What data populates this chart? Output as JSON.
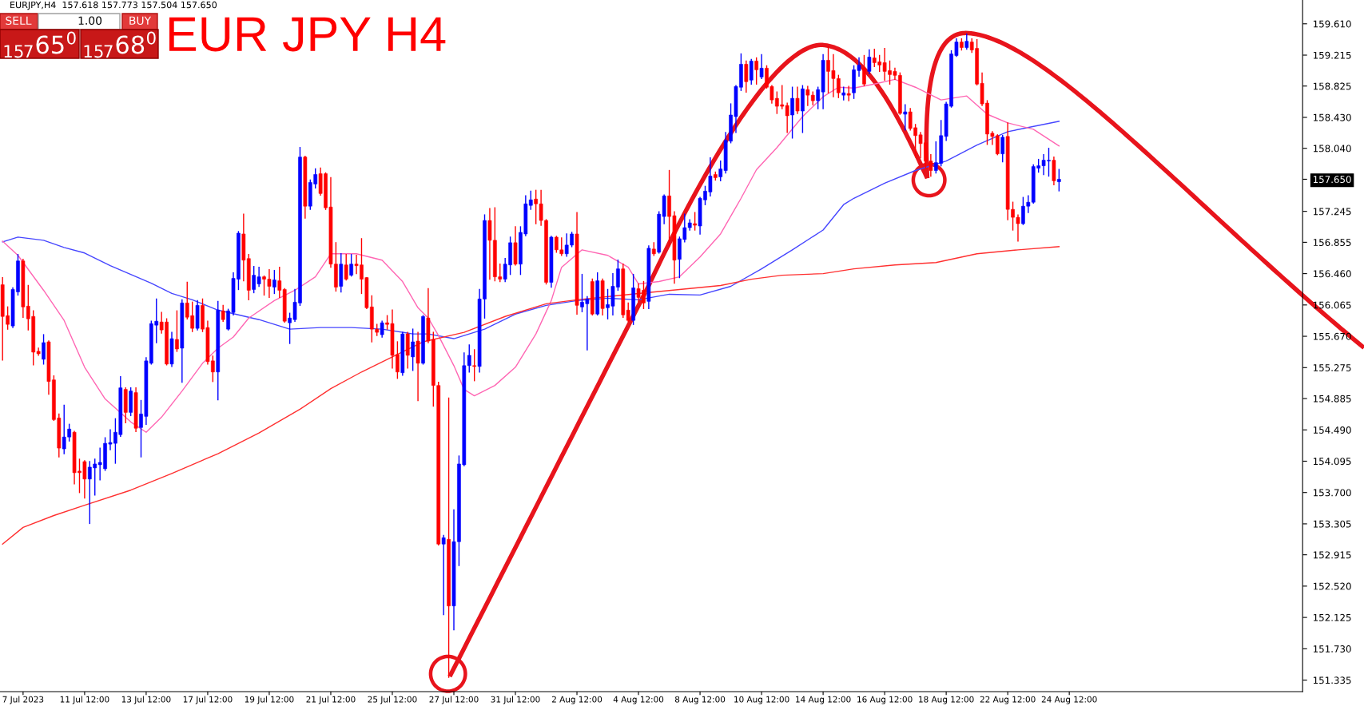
{
  "chart_data": {
    "type": "candlestick",
    "title": "EUR JPY H4",
    "subtitle": "EURJPY,H4  157.618 157.773 157.504 157.650",
    "annotations": [
      "SELL",
      "1.00",
      "BUY",
      "$_{157}$65$^{0}$",
      "$_{157}$68$^{0}$"
    ],
    "categories": [
      null,
      null,
      null,
      null,
      "7 Jul 2023",
      null,
      null,
      null,
      null,
      null,
      null,
      null,
      null,
      null,
      null,
      null,
      "11 Jul 12:00",
      null,
      null,
      null,
      null,
      null,
      null,
      null,
      null,
      null,
      null,
      null,
      "13 Jul 12:00",
      null,
      null,
      null,
      null,
      null,
      null,
      null,
      null,
      null,
      null,
      null,
      "17 Jul 12:00",
      null,
      null,
      null,
      null,
      null,
      null,
      null,
      null,
      null,
      null,
      null,
      "19 Jul 12:00",
      null,
      null,
      null,
      null,
      null,
      null,
      null,
      null,
      null,
      null,
      null,
      "21 Jul 12:00",
      null,
      null,
      null,
      null,
      null,
      null,
      null,
      null,
      null,
      null,
      null,
      "25 Jul 12:00",
      null,
      null,
      null,
      null,
      null,
      null,
      null,
      null,
      null,
      null,
      null,
      "27 Jul 12:00",
      null,
      null,
      null,
      null,
      null,
      null,
      null,
      null,
      null,
      null,
      null,
      "31 Jul 12:00",
      null,
      null,
      null,
      null,
      null,
      null,
      null,
      null,
      null,
      null,
      null,
      "2 Aug 12:00",
      null,
      null,
      null,
      null,
      null,
      null,
      null,
      null,
      null,
      null,
      null,
      "4 Aug 12:00",
      null,
      null,
      null,
      null,
      null,
      null,
      null,
      null,
      null,
      null,
      null,
      "8 Aug 12:00",
      null,
      null,
      null,
      null,
      null,
      null,
      null,
      null,
      null,
      null,
      null,
      "10 Aug 12:00",
      null,
      null,
      null,
      null,
      null,
      null,
      null,
      null,
      null,
      null,
      null,
      "14 Aug 12:00",
      null,
      null,
      null,
      null,
      null,
      null,
      null,
      null,
      null,
      null,
      null,
      "16 Aug 12:00",
      null,
      null,
      null,
      null,
      null,
      null,
      null,
      null,
      null,
      null,
      null,
      "18 Aug 12:00",
      null,
      null,
      null,
      null,
      null,
      null,
      null,
      null,
      null,
      null,
      null,
      "22 Aug 12:00",
      null,
      null,
      null,
      null,
      null,
      null,
      null,
      null,
      null,
      null,
      null,
      "24 Aug 12:00",
      null,
      null,
      null,
      null,
      null,
      null,
      null,
      null,
      null,
      null,
      null,
      null,
      null,
      null,
      null,
      null,
      null,
      null,
      null,
      null,
      null,
      null,
      null,
      null,
      null,
      null,
      null,
      null,
      null,
      null,
      null,
      null,
      null,
      null,
      null,
      null,
      null,
      null,
      null,
      null,
      null,
      null,
      null,
      null,
      null
    ],
    "ohlc": [
      [
        156.32,
        156.41,
        155.37,
        155.92
      ],
      [
        155.93,
        156.04,
        155.76,
        155.82
      ],
      [
        155.8,
        156.28,
        155.78,
        156.26
      ],
      [
        156.23,
        156.7,
        156.19,
        156.62
      ],
      [
        156.62,
        156.64,
        155.91,
        156.04
      ],
      [
        156.05,
        156.31,
        155.75,
        155.89
      ],
      [
        155.92,
        155.99,
        155.31,
        155.47
      ],
      [
        155.48,
        155.52,
        155.43,
        155.45
      ],
      [
        155.38,
        155.69,
        155.32,
        155.59
      ],
      [
        155.6,
        155.61,
        154.94,
        155.1
      ],
      [
        155.12,
        155.17,
        154.61,
        154.62
      ],
      [
        154.64,
        154.69,
        154.15,
        154.26
      ],
      [
        154.25,
        154.8,
        154.19,
        154.4
      ],
      [
        154.4,
        154.56,
        154.35,
        154.5
      ],
      [
        154.46,
        154.47,
        153.81,
        153.95
      ],
      [
        153.97,
        154.12,
        153.7,
        153.95
      ],
      [
        154.09,
        154.1,
        153.63,
        153.87
      ],
      [
        153.87,
        154.09,
        153.31,
        154.02
      ],
      [
        154.01,
        154.12,
        153.67,
        154.06
      ],
      [
        154.05,
        154.26,
        153.86,
        154.08
      ],
      [
        154.0,
        154.39,
        153.98,
        154.32
      ],
      [
        154.31,
        154.49,
        154.24,
        154.33
      ],
      [
        154.32,
        154.63,
        154.07,
        154.46
      ],
      [
        154.43,
        155.16,
        154.41,
        155.02
      ],
      [
        155.0,
        155.02,
        154.58,
        154.71
      ],
      [
        154.71,
        155.02,
        154.67,
        154.98
      ],
      [
        154.96,
        155.02,
        154.47,
        154.51
      ],
      [
        154.52,
        154.86,
        154.15,
        154.69
      ],
      [
        154.66,
        155.4,
        154.56,
        155.36
      ],
      [
        155.33,
        155.86,
        155.32,
        155.83
      ],
      [
        155.81,
        156.14,
        155.59,
        155.86
      ],
      [
        155.85,
        155.97,
        155.71,
        155.75
      ],
      [
        155.85,
        155.89,
        155.31,
        155.32
      ],
      [
        155.32,
        155.72,
        155.29,
        155.64
      ],
      [
        155.63,
        155.99,
        155.48,
        155.51
      ],
      [
        155.52,
        156.13,
        155.09,
        156.09
      ],
      [
        156.09,
        156.35,
        155.89,
        155.91
      ],
      [
        155.93,
        156.1,
        155.73,
        155.77
      ],
      [
        155.77,
        156.12,
        155.75,
        156.06
      ],
      [
        156.06,
        156.14,
        155.73,
        155.76
      ],
      [
        155.78,
        155.86,
        155.32,
        155.35
      ],
      [
        155.36,
        155.42,
        155.1,
        155.22
      ],
      [
        155.22,
        156.11,
        154.87,
        156.0
      ],
      [
        155.99,
        156.06,
        155.86,
        155.88
      ],
      [
        155.76,
        156.01,
        155.75,
        155.99
      ],
      [
        155.97,
        156.47,
        155.94,
        156.4
      ],
      [
        156.39,
        156.99,
        156.26,
        156.97
      ],
      [
        156.96,
        157.21,
        156.37,
        156.63
      ],
      [
        156.65,
        156.7,
        156.13,
        156.25
      ],
      [
        156.26,
        156.55,
        156.22,
        156.44
      ],
      [
        156.33,
        156.54,
        156.3,
        156.42
      ],
      [
        156.42,
        156.43,
        156.19,
        156.39
      ],
      [
        156.39,
        156.51,
        156.16,
        156.3
      ],
      [
        156.29,
        156.5,
        156.21,
        156.38
      ],
      [
        156.37,
        156.54,
        156.16,
        156.25
      ],
      [
        156.26,
        156.27,
        155.85,
        155.86
      ],
      [
        155.84,
        155.96,
        155.58,
        155.9
      ],
      [
        155.88,
        156.26,
        155.86,
        156.1
      ],
      [
        156.09,
        158.05,
        156.06,
        157.93
      ],
      [
        157.93,
        157.94,
        157.16,
        157.31
      ],
      [
        157.31,
        157.64,
        157.27,
        157.61
      ],
      [
        157.59,
        157.78,
        157.54,
        157.71
      ],
      [
        157.72,
        157.79,
        157.45,
        157.47
      ],
      [
        157.72,
        157.73,
        157.27,
        157.29
      ],
      [
        157.3,
        157.67,
        156.54,
        156.58
      ],
      [
        156.58,
        156.85,
        156.24,
        156.29
      ],
      [
        156.3,
        156.71,
        156.23,
        156.58
      ],
      [
        156.57,
        156.7,
        156.38,
        156.39
      ],
      [
        156.44,
        156.7,
        156.43,
        156.58
      ],
      [
        156.58,
        156.69,
        156.46,
        156.56
      ],
      [
        156.57,
        156.9,
        156.21,
        156.39
      ],
      [
        156.41,
        156.41,
        156.02,
        156.03
      ],
      [
        156.04,
        156.18,
        155.6,
        155.76
      ],
      [
        155.76,
        155.82,
        155.68,
        155.72
      ],
      [
        155.69,
        155.86,
        155.66,
        155.84
      ],
      [
        155.84,
        155.93,
        155.76,
        155.82
      ],
      [
        155.83,
        156.0,
        155.27,
        155.43
      ],
      [
        155.44,
        155.6,
        155.14,
        155.22
      ],
      [
        155.21,
        155.72,
        155.18,
        155.7
      ],
      [
        155.7,
        155.72,
        155.27,
        155.43
      ],
      [
        155.41,
        155.76,
        155.24,
        155.6
      ],
      [
        155.61,
        155.72,
        154.86,
        155.33
      ],
      [
        155.33,
        155.93,
        155.32,
        155.92
      ],
      [
        155.9,
        156.27,
        155.59,
        155.61
      ],
      [
        155.63,
        155.72,
        154.79,
        155.05
      ],
      [
        155.05,
        155.09,
        153.04,
        153.05
      ],
      [
        153.05,
        153.16,
        152.16,
        153.13
      ],
      [
        153.11,
        154.89,
        151.37,
        152.27
      ],
      [
        152.27,
        153.48,
        151.97,
        153.08
      ],
      [
        153.08,
        154.16,
        152.78,
        154.06
      ],
      [
        154.05,
        155.46,
        154.04,
        155.3
      ],
      [
        155.3,
        155.56,
        155.22,
        155.43
      ],
      [
        155.3,
        155.5,
        155.11,
        155.29
      ],
      [
        155.29,
        156.26,
        155.22,
        156.14
      ],
      [
        156.14,
        157.2,
        155.9,
        157.13
      ],
      [
        157.13,
        157.28,
        156.39,
        156.88
      ],
      [
        156.88,
        157.29,
        156.37,
        156.42
      ],
      [
        156.42,
        156.58,
        156.36,
        156.39
      ],
      [
        156.39,
        156.65,
        156.36,
        156.58
      ],
      [
        156.57,
        156.92,
        156.45,
        156.85
      ],
      [
        156.85,
        157.05,
        156.57,
        156.58
      ],
      [
        156.58,
        157.05,
        156.45,
        156.98
      ],
      [
        156.96,
        157.44,
        156.94,
        157.34
      ],
      [
        157.32,
        157.5,
        157.27,
        157.39
      ],
      [
        157.4,
        157.51,
        157.09,
        157.34
      ],
      [
        157.34,
        157.51,
        157.07,
        157.13
      ],
      [
        157.13,
        157.14,
        156.33,
        156.35
      ],
      [
        156.35,
        156.93,
        156.29,
        156.92
      ],
      [
        156.92,
        156.93,
        156.73,
        156.76
      ],
      [
        156.76,
        156.91,
        156.69,
        156.71
      ],
      [
        156.71,
        156.96,
        156.68,
        156.82
      ],
      [
        156.82,
        156.98,
        156.8,
        156.96
      ],
      [
        156.96,
        157.23,
        155.95,
        156.06
      ],
      [
        156.04,
        156.45,
        155.98,
        156.1
      ],
      [
        156.08,
        156.17,
        155.5,
        156.14
      ],
      [
        156.36,
        156.39,
        155.94,
        155.95
      ],
      [
        155.95,
        156.47,
        155.94,
        156.37
      ],
      [
        156.37,
        156.39,
        155.94,
        156.02
      ],
      [
        156.03,
        156.26,
        155.89,
        156.07
      ],
      [
        156.05,
        156.46,
        155.94,
        156.3
      ],
      [
        156.29,
        156.63,
        156.25,
        156.52
      ],
      [
        156.52,
        156.58,
        155.91,
        155.94
      ],
      [
        156.0,
        156.09,
        155.86,
        155.87
      ],
      [
        155.87,
        156.45,
        155.82,
        156.28
      ],
      [
        156.27,
        156.33,
        156.11,
        156.16
      ],
      [
        156.25,
        156.36,
        156.02,
        156.09
      ],
      [
        156.11,
        156.81,
        156.02,
        156.78
      ],
      [
        156.77,
        156.85,
        156.69,
        156.71
      ],
      [
        156.73,
        157.24,
        156.72,
        157.21
      ],
      [
        157.18,
        157.45,
        157.09,
        157.44
      ],
      [
        157.44,
        157.76,
        156.81,
        157.18
      ],
      [
        157.19,
        157.24,
        156.34,
        156.63
      ],
      [
        156.64,
        156.92,
        156.41,
        156.9
      ],
      [
        156.89,
        157.21,
        156.86,
        157.04
      ],
      [
        157.04,
        157.14,
        157.01,
        157.1
      ],
      [
        157.09,
        157.23,
        157.01,
        157.07
      ],
      [
        157.06,
        157.42,
        156.96,
        157.41
      ],
      [
        157.39,
        157.56,
        157.33,
        157.5
      ],
      [
        157.49,
        157.92,
        157.44,
        157.69
      ],
      [
        157.71,
        157.74,
        157.64,
        157.67
      ],
      [
        157.68,
        157.88,
        157.63,
        157.78
      ],
      [
        157.76,
        158.24,
        157.73,
        158.14
      ],
      [
        158.13,
        158.6,
        158.11,
        158.46
      ],
      [
        158.44,
        158.83,
        158.24,
        158.82
      ],
      [
        158.81,
        159.23,
        158.77,
        159.1
      ],
      [
        159.1,
        159.14,
        158.75,
        158.88
      ],
      [
        158.9,
        159.16,
        158.85,
        159.14
      ],
      [
        159.14,
        159.18,
        158.85,
        159.03
      ],
      [
        158.94,
        159.22,
        158.92,
        159.05
      ],
      [
        159.05,
        159.08,
        158.8,
        158.81
      ],
      [
        158.82,
        158.83,
        158.61,
        158.65
      ],
      [
        158.67,
        158.75,
        158.48,
        158.57
      ],
      [
        158.59,
        158.83,
        158.54,
        158.57
      ],
      [
        158.58,
        158.61,
        158.24,
        158.45
      ],
      [
        158.46,
        158.81,
        158.17,
        158.67
      ],
      [
        158.67,
        158.81,
        158.48,
        158.51
      ],
      [
        158.51,
        158.83,
        158.24,
        158.79
      ],
      [
        158.78,
        158.82,
        158.58,
        158.71
      ],
      [
        158.71,
        158.75,
        158.59,
        158.64
      ],
      [
        158.64,
        158.81,
        158.54,
        158.78
      ],
      [
        158.75,
        159.22,
        158.54,
        159.15
      ],
      [
        159.15,
        159.32,
        158.74,
        159.01
      ],
      [
        159.02,
        159.22,
        158.69,
        158.92
      ],
      [
        158.92,
        158.96,
        158.68,
        158.74
      ],
      [
        158.71,
        158.81,
        158.65,
        158.74
      ],
      [
        158.73,
        158.82,
        158.64,
        158.71
      ],
      [
        158.74,
        159.08,
        158.67,
        159.03
      ],
      [
        159.02,
        159.18,
        158.95,
        159.09
      ],
      [
        159.05,
        159.21,
        158.83,
        158.85
      ],
      [
        159.01,
        159.28,
        158.98,
        159.19
      ],
      [
        159.18,
        159.29,
        159.07,
        159.12
      ],
      [
        159.13,
        159.21,
        159.01,
        159.09
      ],
      [
        159.12,
        159.3,
        158.9,
        159.01
      ],
      [
        159.02,
        159.14,
        158.85,
        158.97
      ],
      [
        159.01,
        159.05,
        158.91,
        158.96
      ],
      [
        158.96,
        158.99,
        158.47,
        158.48
      ],
      [
        158.47,
        158.59,
        158.27,
        158.5
      ],
      [
        158.5,
        158.54,
        158.27,
        158.29
      ],
      [
        158.3,
        158.34,
        157.93,
        158.2
      ],
      [
        158.21,
        158.24,
        157.92,
        158.1
      ],
      [
        158.11,
        158.14,
        157.79,
        157.88
      ],
      [
        157.88,
        157.96,
        157.69,
        157.76
      ],
      [
        157.76,
        158.12,
        157.73,
        157.86
      ],
      [
        157.85,
        158.39,
        157.82,
        158.2
      ],
      [
        158.19,
        158.62,
        158.14,
        158.6
      ],
      [
        158.57,
        159.27,
        158.56,
        159.23
      ],
      [
        159.21,
        159.42,
        159.2,
        159.38
      ],
      [
        159.38,
        159.42,
        159.28,
        159.31
      ],
      [
        159.31,
        159.48,
        159.29,
        159.39
      ],
      [
        159.38,
        159.42,
        159.25,
        159.28
      ],
      [
        159.3,
        159.41,
        158.84,
        158.85
      ],
      [
        158.86,
        158.99,
        158.58,
        158.6
      ],
      [
        158.61,
        158.64,
        158.09,
        158.22
      ],
      [
        158.23,
        158.25,
        158.09,
        158.19
      ],
      [
        158.2,
        158.21,
        157.96,
        157.97
      ],
      [
        157.97,
        158.2,
        157.87,
        158.18
      ],
      [
        158.19,
        158.36,
        157.14,
        157.27
      ],
      [
        157.27,
        157.36,
        157.01,
        157.17
      ],
      [
        157.17,
        157.2,
        156.87,
        157.09
      ],
      [
        157.09,
        157.42,
        157.08,
        157.31
      ],
      [
        157.31,
        157.44,
        157.23,
        157.36
      ],
      [
        157.36,
        157.83,
        157.35,
        157.81
      ],
      [
        157.79,
        157.9,
        157.74,
        157.82
      ],
      [
        157.82,
        157.96,
        157.71,
        157.89
      ],
      [
        157.88,
        158.04,
        157.69,
        157.89
      ],
      [
        157.89,
        157.93,
        157.58,
        157.63
      ],
      [
        157.618,
        157.773,
        157.504,
        157.65
      ],
      null,
      null,
      null,
      null,
      null,
      null,
      null,
      null,
      null,
      null,
      null,
      null,
      null,
      null,
      null,
      null,
      null,
      null,
      null,
      null,
      null,
      null,
      null,
      null,
      null,
      null,
      null,
      null,
      null,
      null,
      null,
      null,
      null,
      null,
      null,
      null,
      null,
      null,
      null,
      null,
      null,
      null,
      null,
      null,
      null,
      null,
      null
    ],
    "colors": [
      "#ff0000",
      "#ff0000",
      "#0000ff",
      "#0000ff",
      "#ff0000",
      "#ff0000",
      "#ff0000",
      "#ff0000",
      "#0000ff",
      "#ff0000",
      "#ff0000",
      "#ff0000",
      "#0000ff",
      "#0000ff",
      "#ff0000",
      "#ff0000",
      "#ff0000",
      "#0000ff",
      "#0000ff",
      "#0000ff",
      "#0000ff",
      "#0000ff",
      "#0000ff",
      "#0000ff",
      "#ff0000",
      "#0000ff",
      "#ff0000",
      "#0000ff",
      "#0000ff",
      "#0000ff",
      "#0000ff",
      "#ff0000",
      "#ff0000",
      "#0000ff",
      "#ff0000",
      "#0000ff",
      "#ff0000",
      "#ff0000",
      "#0000ff",
      "#ff0000",
      "#ff0000",
      "#ff0000",
      "#0000ff",
      "#ff0000",
      "#0000ff",
      "#0000ff",
      "#0000ff",
      "#ff0000",
      "#ff0000",
      "#0000ff",
      "#0000ff",
      "#ff0000",
      "#ff0000",
      "#0000ff",
      "#ff0000",
      "#ff0000",
      "#0000ff",
      "#0000ff",
      "#0000ff",
      "#ff0000",
      "#0000ff",
      "#0000ff",
      "#ff0000",
      "#ff0000",
      "#ff0000",
      "#ff0000",
      "#0000ff",
      "#ff0000",
      "#0000ff",
      "#ff0000",
      "#ff0000",
      "#ff0000",
      "#ff0000",
      "#ff0000",
      "#0000ff",
      "#ff0000",
      "#ff0000",
      "#ff0000",
      "#0000ff",
      "#ff0000",
      "#0000ff",
      "#ff0000",
      "#0000ff",
      "#ff0000",
      "#ff0000",
      "#ff0000",
      "#0000ff",
      "#ff0000",
      "#0000ff",
      "#0000ff",
      "#0000ff",
      "#0000ff",
      "#ff0000",
      "#0000ff",
      "#0000ff",
      "#ff0000",
      "#ff0000",
      "#ff0000",
      "#0000ff",
      "#0000ff",
      "#ff0000",
      "#0000ff",
      "#0000ff",
      "#0000ff",
      "#ff0000",
      "#ff0000",
      "#ff0000",
      "#0000ff",
      "#ff0000",
      "#ff0000",
      "#0000ff",
      "#0000ff",
      "#ff0000",
      "#0000ff",
      "#0000ff",
      "#ff0000",
      "#0000ff",
      "#ff0000",
      "#0000ff",
      "#0000ff",
      "#0000ff",
      "#ff0000",
      "#ff0000",
      "#0000ff",
      "#ff0000",
      "#ff0000",
      "#0000ff",
      "#ff0000",
      "#0000ff",
      "#0000ff",
      "#ff0000",
      "#ff0000",
      "#0000ff",
      "#0000ff",
      "#0000ff",
      "#ff0000",
      "#0000ff",
      "#0000ff",
      "#0000ff",
      "#ff0000",
      "#0000ff",
      "#0000ff",
      "#0000ff",
      "#0000ff",
      "#0000ff",
      "#ff0000",
      "#0000ff",
      "#ff0000",
      "#0000ff",
      "#ff0000",
      "#ff0000",
      "#ff0000",
      "#ff0000",
      "#ff0000",
      "#0000ff",
      "#ff0000",
      "#0000ff",
      "#ff0000",
      "#ff0000",
      "#0000ff",
      "#0000ff",
      "#ff0000",
      "#ff0000",
      "#ff0000",
      "#0000ff",
      "#ff0000",
      "#0000ff",
      "#0000ff",
      "#ff0000",
      "#0000ff",
      "#ff0000",
      "#ff0000",
      "#ff0000",
      "#ff0000",
      "#ff0000",
      "#ff0000",
      "#0000ff",
      "#ff0000",
      "#ff0000",
      "#ff0000",
      "#ff0000",
      "#ff0000",
      "#0000ff",
      "#0000ff",
      "#0000ff",
      "#0000ff",
      "#0000ff",
      "#ff0000",
      "#0000ff",
      "#ff0000",
      "#ff0000",
      "#ff0000",
      "#ff0000",
      "#ff0000",
      "#ff0000",
      "#0000ff",
      "#ff0000",
      "#ff0000",
      "#ff0000",
      "#0000ff",
      "#0000ff",
      "#0000ff",
      "#0000ff",
      "#0000ff",
      "#0000ff",
      "#ff0000",
      "#0000ff",
      null,
      null,
      null,
      null,
      null,
      null,
      null,
      null,
      null,
      null,
      null,
      null,
      null,
      null,
      null,
      null,
      null,
      null,
      null,
      null,
      null,
      null,
      null,
      null,
      null,
      null,
      null,
      null,
      null,
      null,
      null,
      null,
      null,
      null,
      null,
      null,
      null,
      null,
      null,
      null,
      null,
      null,
      null,
      null,
      null,
      null,
      null
    ],
    "series": [
      {
        "type": "line",
        "color": "#4646ff",
        "values": [
          156.86,
          null,
          null,
          156.92,
          null,
          null,
          null,
          null,
          156.88,
          null,
          null,
          null,
          156.79,
          null,
          null,
          null,
          156.72,
          null,
          null,
          null,
          null,
          156.56,
          null,
          null,
          null,
          156.45,
          null,
          null,
          null,
          156.34,
          null,
          null,
          null,
          156.21,
          null,
          null,
          null,
          156.13,
          null,
          null,
          null,
          null,
          156.0,
          null,
          null,
          null,
          null,
          null,
          null,
          null,
          155.88,
          null,
          null,
          null,
          null,
          null,
          155.76,
          null,
          null,
          null,
          null,
          null,
          155.78,
          null,
          null,
          null,
          null,
          null,
          155.78,
          null,
          null,
          null,
          null,
          null,
          155.76,
          null,
          null,
          null,
          null,
          null,
          155.7,
          null,
          null,
          155.7,
          null,
          null,
          null,
          null,
          155.64,
          null,
          null,
          null,
          null,
          null,
          155.76,
          null,
          null,
          null,
          null,
          null,
          155.95,
          null,
          null,
          null,
          null,
          null,
          156.06,
          null,
          null,
          null,
          null,
          null,
          156.12,
          null,
          null,
          null,
          null,
          null,
          156.15,
          null,
          null,
          null,
          null,
          null,
          156.13,
          null,
          null,
          null,
          null,
          null,
          156.2,
          null,
          null,
          null,
          null,
          null,
          156.19,
          null,
          null,
          null,
          null,
          null,
          156.3,
          null,
          null,
          null,
          null,
          null,
          156.52,
          null,
          null,
          null,
          null,
          null,
          156.76,
          null,
          null,
          null,
          null,
          null,
          157.01,
          null,
          null,
          null,
          157.33,
          null,
          157.41,
          null,
          null,
          null,
          null,
          null,
          157.6,
          null,
          null,
          null,
          null,
          null,
          157.76,
          null,
          null,
          null,
          null,
          null,
          157.88,
          null,
          null,
          null,
          null,
          null,
          158.08,
          null,
          null,
          null,
          null,
          null,
          158.25,
          null,
          null,
          null,
          null,
          null,
          null,
          null,
          null,
          null,
          158.38,
          null,
          null,
          null,
          null,
          null,
          null,
          null,
          null,
          null,
          null,
          null,
          null,
          null,
          null,
          null,
          null,
          null,
          null,
          null,
          null,
          null,
          null,
          null,
          null,
          null,
          null,
          null,
          null,
          null,
          null,
          null,
          null,
          null,
          null,
          null,
          null,
          null,
          null,
          null,
          null,
          null,
          null,
          null,
          null,
          null,
          null,
          null
        ]
      },
      {
        "type": "line",
        "color": "#ff66b3",
        "values": [
          156.87,
          null,
          null,
          156.69,
          null,
          null,
          null,
          null,
          156.25,
          null,
          null,
          null,
          155.87,
          null,
          null,
          null,
          155.28,
          null,
          null,
          null,
          154.88,
          null,
          null,
          null,
          null,
          154.59,
          null,
          null,
          154.46,
          null,
          null,
          154.65,
          null,
          null,
          null,
          154.98,
          null,
          null,
          null,
          155.33,
          null,
          null,
          155.52,
          null,
          null,
          155.66,
          null,
          null,
          155.9,
          null,
          null,
          null,
          null,
          156.12,
          null,
          null,
          null,
          156.25,
          null,
          null,
          null,
          156.42,
          null,
          null,
          156.71,
          null,
          null,
          null,
          null,
          156.71,
          null,
          null,
          null,
          null,
          156.63,
          null,
          null,
          null,
          156.36,
          null,
          null,
          156.03,
          null,
          155.9,
          null,
          155.68,
          null,
          null,
          155.3,
          null,
          155.0,
          null,
          154.92,
          null,
          null,
          null,
          155.05,
          null,
          null,
          null,
          155.28,
          null,
          null,
          null,
          155.7,
          null,
          null,
          156.12,
          null,
          156.54,
          null,
          null,
          null,
          156.76,
          null,
          null,
          null,
          null,
          156.69,
          null,
          null,
          null,
          156.54,
          null,
          156.33,
          null,
          null,
          null,
          156.36,
          null,
          null,
          null,
          156.42,
          null,
          null,
          null,
          156.67,
          null,
          null,
          null,
          156.96,
          null,
          null,
          null,
          157.41,
          null,
          null,
          157.77,
          null,
          null,
          null,
          158.05,
          null,
          null,
          null,
          null,
          158.44,
          null,
          null,
          null,
          158.69,
          null,
          null,
          158.81,
          null,
          null,
          158.8,
          null,
          null,
          null,
          158.85,
          null,
          null,
          null,
          158.91,
          null,
          null,
          null,
          158.81,
          null,
          null,
          null,
          null,
          158.65,
          null,
          null,
          null,
          null,
          158.7,
          null,
          null,
          null,
          158.47,
          null,
          null,
          null,
          158.36,
          null,
          null,
          null,
          null,
          158.28,
          null,
          null,
          null,
          null,
          158.07,
          null,
          null,
          null,
          null,
          null,
          null,
          null,
          null,
          null,
          null,
          null,
          null,
          null,
          null,
          null,
          null,
          null,
          null,
          null,
          null,
          null,
          null,
          null,
          null,
          null,
          null,
          null,
          null,
          null,
          null,
          null,
          null,
          null,
          null,
          null,
          null,
          null,
          null,
          null,
          null,
          null,
          null,
          null,
          null,
          null,
          null,
          null
        ]
      },
      {
        "type": "line",
        "color": "#ff3030",
        "values": [
          153.05,
          null,
          null,
          null,
          153.26,
          null,
          null,
          null,
          null,
          null,
          153.41,
          null,
          null,
          null,
          null,
          null,
          153.54,
          null,
          null,
          null,
          null,
          null,
          null,
          null,
          null,
          153.73,
          null,
          null,
          null,
          null,
          null,
          null,
          null,
          153.94,
          null,
          null,
          null,
          null,
          null,
          null,
          null,
          null,
          154.19,
          null,
          null,
          null,
          null,
          null,
          null,
          null,
          154.45,
          null,
          null,
          null,
          null,
          null,
          null,
          null,
          154.75,
          null,
          null,
          null,
          null,
          null,
          155.01,
          null,
          null,
          null,
          null,
          null,
          155.22,
          null,
          null,
          null,
          null,
          null,
          155.41,
          null,
          null,
          null,
          null,
          null,
          155.6,
          null,
          null,
          null,
          null,
          null,
          null,
          null,
          155.72,
          null,
          null,
          null,
          null,
          null,
          null,
          null,
          155.92,
          null,
          null,
          null,
          null,
          null,
          null,
          null,
          156.08,
          null,
          null,
          null,
          null,
          null,
          156.13,
          null,
          null,
          null,
          null,
          null,
          156.17,
          null,
          null,
          null,
          null,
          null,
          156.21,
          null,
          null,
          null,
          null,
          null,
          null,
          null,
          156.26,
          null,
          null,
          null,
          null,
          null,
          null,
          null,
          156.31,
          null,
          null,
          null,
          null,
          null,
          156.39,
          null,
          null,
          null,
          null,
          null,
          156.44,
          null,
          null,
          null,
          null,
          null,
          null,
          null,
          156.46,
          null,
          null,
          null,
          null,
          null,
          156.52,
          null,
          null,
          null,
          null,
          null,
          null,
          null,
          156.57,
          null,
          null,
          null,
          null,
          null,
          null,
          null,
          156.6,
          null,
          null,
          null,
          null,
          null,
          null,
          null,
          156.71,
          null,
          null,
          null,
          null,
          null,
          null,
          null,
          156.76,
          null,
          null,
          null,
          null,
          null,
          null,
          null,
          156.8,
          null,
          null,
          null,
          null,
          null,
          null,
          null,
          null,
          null,
          null,
          null,
          null,
          null,
          null,
          null,
          null,
          null,
          null,
          null,
          null,
          null,
          null,
          null,
          null,
          null,
          null,
          null,
          null,
          null,
          null,
          null,
          null,
          null,
          null,
          null,
          null,
          null,
          null,
          null,
          null,
          null,
          null,
          null,
          null,
          null,
          null,
          null
        ]
      }
    ],
    "ylim": [
      151.19,
      159.91
    ],
    "yticks": [
      {
        "value": 159.61,
        "label": "159.610"
      },
      {
        "value": 159.215,
        "label": "159.215"
      },
      {
        "value": 158.825,
        "label": "158.825"
      },
      {
        "value": 158.43,
        "label": "158.430"
      },
      {
        "value": 158.04,
        "label": "158.040"
      },
      {
        "value": 157.65,
        "label": "157.650"
      },
      {
        "value": 157.245,
        "label": "157.245"
      },
      {
        "value": 156.855,
        "label": "156.855"
      },
      {
        "value": 156.46,
        "label": "156.460"
      },
      {
        "value": 156.065,
        "label": "156.065"
      },
      {
        "value": 155.67,
        "label": "155.670"
      },
      {
        "value": 155.275,
        "label": "155.275"
      },
      {
        "value": 154.885,
        "label": "154.885"
      },
      {
        "value": 154.49,
        "label": "154.490"
      },
      {
        "value": 154.095,
        "label": "154.095"
      },
      {
        "value": 153.7,
        "label": "153.700"
      },
      {
        "value": 153.305,
        "label": "153.305"
      },
      {
        "value": 152.915,
        "label": "152.915"
      },
      {
        "value": 152.52,
        "label": "152.520"
      },
      {
        "value": 152.125,
        "label": "152.125"
      },
      {
        "value": 151.73,
        "label": "151.730"
      },
      {
        "value": 151.335,
        "label": "151.335"
      }
    ]
  }
}
